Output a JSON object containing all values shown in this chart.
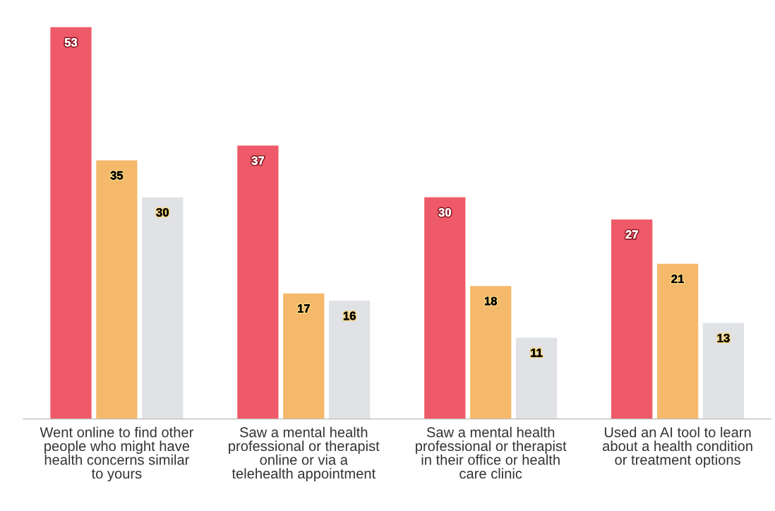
{
  "chart_data": {
    "type": "bar",
    "categories": [
      "Went online to find other people who might have health concerns similar to yours",
      "Saw a mental health professional or therapist online or via a telehealth appointment",
      "Saw a mental health professional or therapist in their office or health care clinic",
      "Used an AI tool to learn about a health condition or treatment options"
    ],
    "series": [
      {
        "color": "#ef5a68",
        "values": [
          53,
          37,
          30,
          27
        ]
      },
      {
        "color": "#f4b96a",
        "values": [
          35,
          17,
          18,
          21
        ]
      },
      {
        "color": "#e0e2e5",
        "values": [
          30,
          16,
          11,
          13
        ]
      }
    ],
    "data_labels": true,
    "grid": false,
    "legend": false
  }
}
